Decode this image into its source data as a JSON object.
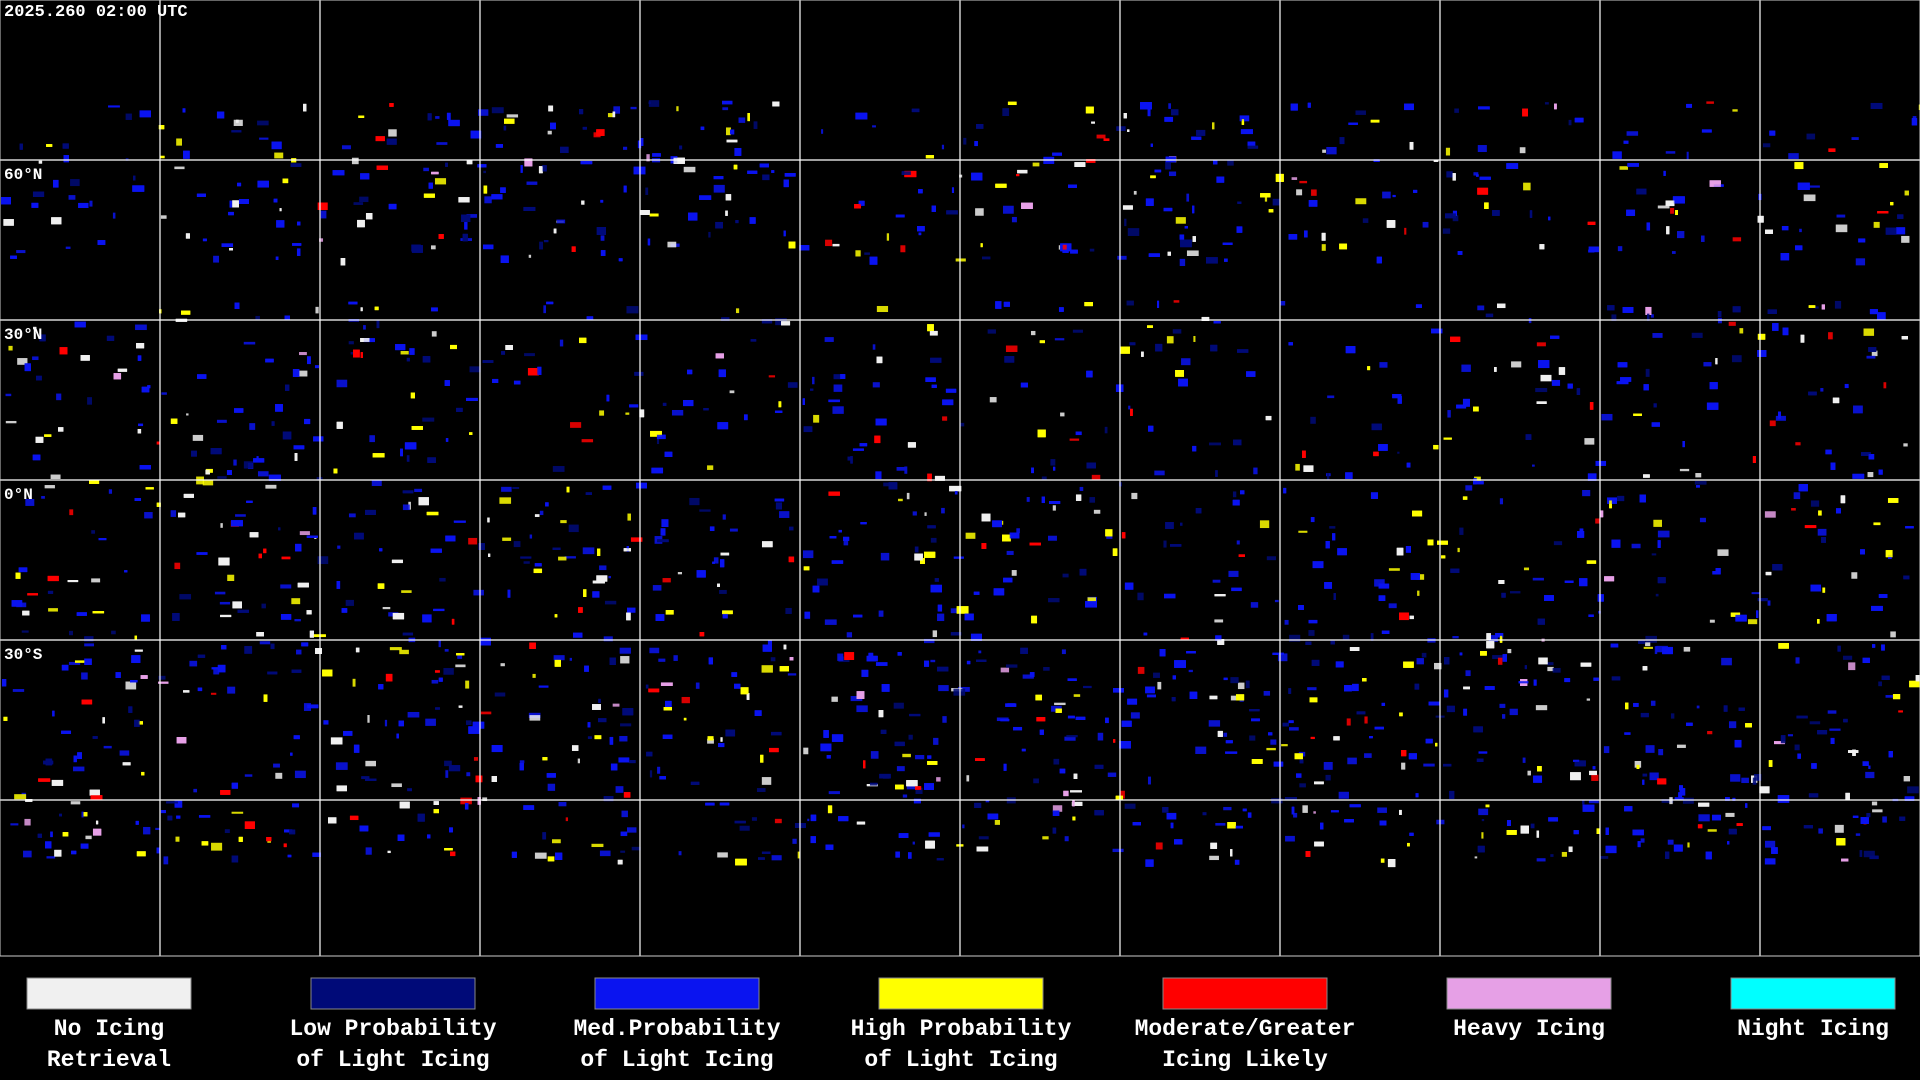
{
  "timestamp": "2025.260 02:00 UTC",
  "latitude_labels": [
    "60°N",
    "30°N",
    "0°N",
    "30°S"
  ],
  "legend": [
    {
      "lines": [
        "No Icing",
        "Retrieval"
      ],
      "color": "#f0f0f0"
    },
    {
      "lines": [
        "Low Probability",
        "of Light Icing"
      ],
      "color": "#000a78"
    },
    {
      "lines": [
        "Med.Probability",
        "of Light Icing"
      ],
      "color": "#0a14f0"
    },
    {
      "lines": [
        "High Probability",
        "of Light Icing"
      ],
      "color": "#ffff00"
    },
    {
      "lines": [
        "Moderate/Greater",
        "Icing Likely"
      ],
      "color": "#ff0000"
    },
    {
      "lines": [
        "Heavy Icing"
      ],
      "color": "#e6a0e6"
    },
    {
      "lines": [
        "Night Icing"
      ],
      "color": "#00ffff"
    }
  ]
}
